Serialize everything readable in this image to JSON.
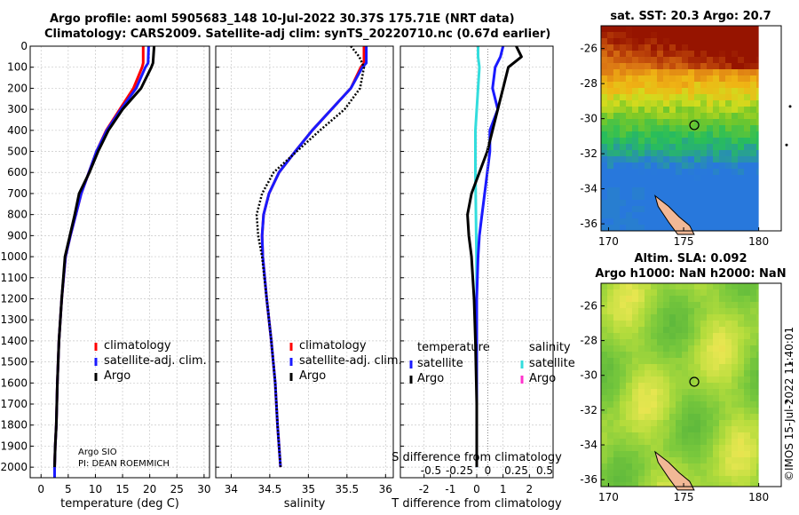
{
  "header": {
    "line1": "Argo profile: aoml 5905683_148 10-Jul-2022 30.37S 175.71E (NRT data)",
    "line2": "Climatology: CARS2009. Satellite-adj clim: synTS_20220710.nc (0.67d earlier)"
  },
  "credit": "©IMOS 15-Jul-2022 11:40:01",
  "colors": {
    "climatology": "#ff0000",
    "satellite_adj": "#1a1aff",
    "argo": "#000000",
    "sal_satellite": "#33dddd",
    "magenta": "#ff33cc"
  },
  "chart_data": [
    {
      "type": "line",
      "id": "temperature",
      "xlabel": "temperature (deg C)",
      "xlim": [
        -2,
        31
      ],
      "xticks": [
        0,
        5,
        10,
        15,
        20,
        25,
        30
      ],
      "ylim": [
        0,
        2050
      ],
      "yticks": [
        0,
        100,
        200,
        300,
        400,
        500,
        600,
        700,
        800,
        900,
        1000,
        1100,
        1200,
        1300,
        1400,
        1500,
        1600,
        1700,
        1800,
        1900,
        2000
      ],
      "legend": [
        "climatology",
        "satellite-adj. clim.",
        "Argo"
      ],
      "note": [
        "Argo SIO",
        "PI: DEAN ROEMMICH"
      ],
      "series": [
        {
          "name": "climatology",
          "color": "#ff0000",
          "width": 3,
          "dash": "",
          "x": [
            18.8,
            18.8,
            18.6,
            17.0,
            14.5,
            12.0,
            10.2,
            8.8,
            7.4,
            6.4,
            5.4,
            4.5,
            3.8,
            3.3,
            3.0,
            2.8,
            2.6,
            2.5,
            2.5
          ],
          "y": [
            0,
            80,
            100,
            200,
            300,
            400,
            500,
            600,
            700,
            800,
            900,
            1000,
            1200,
            1400,
            1600,
            1800,
            1900,
            2000,
            2050
          ]
        },
        {
          "name": "satellite-adj. clim.",
          "color": "#1a1aff",
          "width": 3,
          "dash": "",
          "x": [
            19.8,
            19.7,
            19.2,
            17.5,
            14.7,
            12.1,
            10.2,
            8.8,
            7.4,
            6.4,
            5.4,
            4.5,
            3.8,
            3.3,
            3.0,
            2.8,
            2.6,
            2.5,
            2.5
          ],
          "y": [
            0,
            80,
            100,
            200,
            300,
            400,
            500,
            600,
            700,
            800,
            900,
            1000,
            1200,
            1400,
            1600,
            1800,
            1900,
            2000,
            2050
          ]
        },
        {
          "name": "Argo",
          "color": "#000000",
          "width": 3,
          "dash": "",
          "x": [
            20.8,
            20.6,
            20.3,
            18.4,
            15.0,
            12.4,
            10.5,
            8.9,
            7.0,
            6.2,
            5.3,
            4.4,
            3.8,
            3.3,
            3.0,
            2.8,
            2.6,
            2.5
          ],
          "y": [
            0,
            80,
            100,
            200,
            300,
            400,
            500,
            600,
            700,
            800,
            900,
            1000,
            1200,
            1400,
            1600,
            1800,
            1900,
            2000
          ]
        }
      ]
    },
    {
      "type": "line",
      "id": "salinity",
      "xlabel": "salinity",
      "xlim": [
        33.8,
        36.1
      ],
      "xticks": [
        34,
        34.5,
        35,
        35.5,
        36
      ],
      "ylim": [
        0,
        2050
      ],
      "legend": [
        "climatology",
        "satellite-adj. clim.",
        "Argo"
      ],
      "series": [
        {
          "name": "climatology",
          "color": "#ff0000",
          "width": 3,
          "dash": "",
          "x": [
            35.72,
            35.72,
            35.68,
            35.55,
            35.3,
            35.05,
            34.83,
            34.62,
            34.49,
            34.42,
            34.4,
            34.41,
            34.46,
            34.52,
            34.57,
            34.6,
            34.62,
            34.64
          ],
          "y": [
            0,
            80,
            100,
            200,
            300,
            400,
            500,
            600,
            700,
            800,
            900,
            1000,
            1200,
            1400,
            1600,
            1800,
            1900,
            2000
          ]
        },
        {
          "name": "satellite-adj. clim.",
          "color": "#1a1aff",
          "width": 3,
          "dash": "",
          "x": [
            35.75,
            35.75,
            35.7,
            35.55,
            35.3,
            35.05,
            34.83,
            34.62,
            34.49,
            34.42,
            34.4,
            34.41,
            34.46,
            34.52,
            34.57,
            34.6,
            34.62,
            34.64
          ],
          "y": [
            0,
            80,
            100,
            200,
            300,
            400,
            500,
            600,
            700,
            800,
            900,
            1000,
            1200,
            1400,
            1600,
            1800,
            1900,
            2000
          ]
        },
        {
          "name": "Argo",
          "color": "#000000",
          "width": 2.5,
          "dash": "2,2",
          "x": [
            35.55,
            35.66,
            35.72,
            35.67,
            35.47,
            35.15,
            34.85,
            34.55,
            34.4,
            34.33,
            34.35,
            34.4,
            34.46,
            34.52,
            34.57,
            34.6,
            34.62,
            34.64
          ],
          "y": [
            0,
            50,
            100,
            200,
            300,
            400,
            500,
            600,
            700,
            800,
            900,
            1000,
            1200,
            1400,
            1600,
            1800,
            1900,
            2000
          ]
        }
      ]
    },
    {
      "type": "line",
      "id": "difference",
      "xlabel": "T difference from climatology",
      "xlabel_top": "S difference from climatology",
      "xlim": [
        -2.9,
        2.9
      ],
      "xticks": [
        -2,
        -1,
        0,
        1,
        2
      ],
      "s_ticks": [
        -0.5,
        -0.25,
        0,
        0.25,
        0.5
      ],
      "s_tick_labels": [
        "-0.5",
        "-0.25",
        "0",
        "0.25",
        "0.5"
      ],
      "ylim": [
        0,
        2050
      ],
      "legend_temperature_title": "temperature",
      "legend_temperature": [
        "satellite",
        "Argo"
      ],
      "legend_salinity_title": "salinity",
      "legend_salinity": [
        "satellite",
        "Argo"
      ],
      "series": [
        {
          "name": "S satellite",
          "color": "#33dddd",
          "width": 3,
          "dash": "",
          "x": [
            0.05,
            0.05,
            0.1,
            0.05,
            0,
            -0.05,
            -0.05,
            -0.05,
            -0.04,
            -0.03,
            -0.02,
            -0.01,
            0,
            0,
            0,
            0
          ],
          "y": [
            0,
            50,
            100,
            200,
            300,
            400,
            500,
            600,
            700,
            800,
            900,
            1000,
            1200,
            1400,
            1700,
            2000
          ]
        },
        {
          "name": "T satellite",
          "color": "#1a1aff",
          "width": 3,
          "dash": "",
          "x": [
            1.0,
            0.9,
            0.7,
            0.6,
            0.8,
            0.5,
            0.5,
            0.4,
            0.3,
            0.2,
            0.1,
            0.05,
            0,
            0,
            0,
            0
          ],
          "y": [
            0,
            50,
            100,
            200,
            300,
            400,
            500,
            600,
            700,
            800,
            900,
            1000,
            1200,
            1400,
            1700,
            2000
          ]
        },
        {
          "name": "T Argo",
          "color": "#000000",
          "width": 3,
          "dash": "",
          "x": [
            1.5,
            1.7,
            1.2,
            1.0,
            0.8,
            0.6,
            0.4,
            0.1,
            -0.2,
            -0.35,
            -0.3,
            -0.2,
            -0.1,
            -0.05,
            0,
            0
          ],
          "y": [
            0,
            50,
            100,
            200,
            300,
            400,
            500,
            600,
            700,
            800,
            900,
            1000,
            1200,
            1400,
            1700,
            2000
          ]
        }
      ]
    },
    {
      "type": "heatmap",
      "id": "sst-map",
      "title": "sat. SST: 20.3 Argo: 20.7",
      "xlim": [
        169.5,
        181.5
      ],
      "xticks": [
        170,
        175,
        180
      ],
      "ylim": [
        -36.4,
        -24.7
      ],
      "yticks": [
        -26,
        -28,
        -30,
        -32,
        -34,
        -36
      ],
      "float_position": {
        "lon": 175.71,
        "lat": -30.37
      }
    },
    {
      "type": "heatmap",
      "id": "sla-map",
      "title_line1": "Altim. SLA: 0.092",
      "title_line2": "Argo h1000: NaN h2000: NaN",
      "xlim": [
        169.5,
        181.5
      ],
      "xticks": [
        170,
        175,
        180
      ],
      "ylim": [
        -36.4,
        -24.7
      ],
      "yticks": [
        -26,
        -28,
        -30,
        -32,
        -34,
        -36
      ],
      "float_position": {
        "lon": 175.71,
        "lat": -30.37
      }
    }
  ]
}
